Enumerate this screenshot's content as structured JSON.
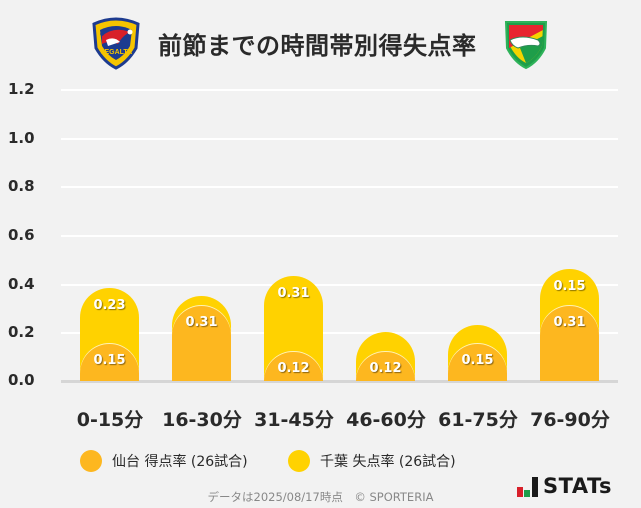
{
  "header": {
    "title": "前節までの時間帯別得失点率",
    "left_logo": "vegalta-sendai-crest-icon",
    "right_logo": "jef-united-chiba-crest-icon"
  },
  "colors": {
    "background": "#f2f2f2",
    "sendai": "#FDB71F",
    "chiba": "#FFD200",
    "grid": "#ffffff",
    "baseline": "#d6d6d6"
  },
  "yaxis": {
    "ticks": [
      "1.2",
      "1.0",
      "0.8",
      "0.6",
      "0.4",
      "0.2",
      "0.0"
    ]
  },
  "chart_data": {
    "type": "bar",
    "stacked": true,
    "title": "前節までの時間帯別得失点率",
    "categories": [
      "0-15分",
      "16-30分",
      "31-45分",
      "46-60分",
      "61-75分",
      "76-90分"
    ],
    "series": [
      {
        "name": "仙台 得点率 (26試合)",
        "color": "#FDB71F",
        "values": [
          0.15,
          0.31,
          0.12,
          0.12,
          0.15,
          0.31
        ],
        "labels": [
          "0.15",
          "0.31",
          "0.12",
          "0.12",
          "0.15",
          "0.31"
        ]
      },
      {
        "name": "千葉 失点率 (26試合)",
        "color": "#FFD200",
        "values": [
          0.23,
          0.04,
          0.31,
          0.08,
          0.08,
          0.15
        ],
        "labels": [
          "0.23",
          "",
          "0.31",
          "",
          "",
          "0.15"
        ]
      }
    ],
    "xlabel": "",
    "ylabel": "",
    "ylim": [
      0,
      1.2
    ],
    "yticks": [
      0.0,
      0.2,
      0.4,
      0.6,
      0.8,
      1.0,
      1.2
    ],
    "grid": true,
    "legend_position": "bottom"
  },
  "legend": [
    {
      "label": "仙台 得点率 (26試合)",
      "color": "#FDB71F"
    },
    {
      "label": "千葉 失点率 (26試合)",
      "color": "#FFD200"
    }
  ],
  "footer": {
    "note": "データは2025/08/17時点　© SPORTERIA",
    "brand": "STATs"
  }
}
